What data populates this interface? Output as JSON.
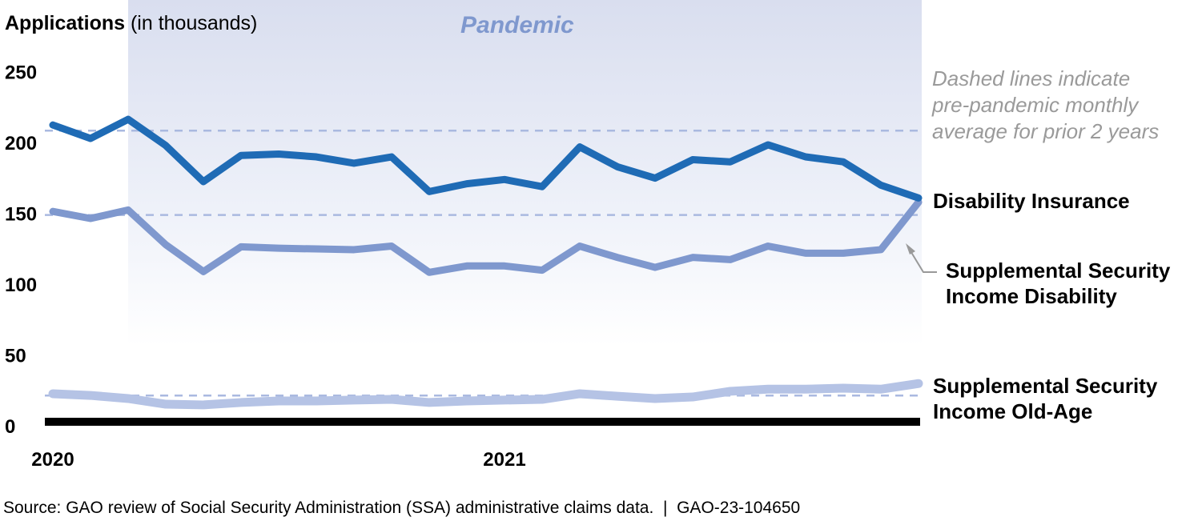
{
  "chart_data": {
    "type": "line",
    "ylabel_bold": "Applications",
    "ylabel_rest": " (in thousands)",
    "ylim": [
      0,
      250
    ],
    "yticks": [
      0,
      50,
      100,
      150,
      200,
      250
    ],
    "ytick_labels": [
      "0",
      "50",
      "100",
      "150",
      "200",
      "250"
    ],
    "x_months": [
      "Jan 2020",
      "Feb 2020",
      "Mar 2020",
      "Apr 2020",
      "May 2020",
      "Jun 2020",
      "Jul 2020",
      "Aug 2020",
      "Sep 2020",
      "Oct 2020",
      "Nov 2020",
      "Dec 2020",
      "Jan 2021",
      "Feb 2021",
      "Mar 2021",
      "Apr 2021",
      "May 2021",
      "Jun 2021",
      "Jul 2021",
      "Aug 2021",
      "Sep 2021",
      "Oct 2021",
      "Nov 2021",
      "Dec 2021"
    ],
    "xtick_labels": [
      {
        "label": "2020",
        "index": 0
      },
      {
        "label": "2021",
        "index": 12
      }
    ],
    "grid": false,
    "shaded_region": {
      "label": "Pandemic",
      "start_index": 2,
      "end_index": 23
    },
    "note": [
      "Dashed lines indicate",
      "pre-pandemic monthly",
      "average for prior 2 years"
    ],
    "series": [
      {
        "name": "Disability Insurance",
        "label_lines": [
          "Disability Insurance"
        ],
        "color": "#1f6bb5",
        "baseline_avg": 205.5,
        "values": [
          209.5,
          200,
          213.5,
          195,
          169.5,
          188,
          189,
          187,
          182.5,
          187,
          162.5,
          168,
          171,
          166,
          194,
          180,
          172,
          185,
          183.5,
          195.5,
          187,
          183.5,
          167,
          158
        ]
      },
      {
        "name": "Supplemental Security Income Disability",
        "label_lines": [
          "Supplemental Security",
          "Income Disability"
        ],
        "color": "#7f98ce",
        "baseline_avg": 146,
        "values": [
          148.5,
          143.5,
          149.5,
          125,
          106,
          123.5,
          122.5,
          122,
          121.5,
          124,
          105.5,
          110,
          110,
          107,
          124,
          116,
          109,
          116,
          114.5,
          124,
          119,
          119,
          121.5,
          155
        ]
      },
      {
        "name": "Supplemental Security Income Old-Age",
        "label_lines": [
          "Supplemental Security",
          "Income Old-Age"
        ],
        "color": "#b5c3e5",
        "baseline_avg": 18.5,
        "values": [
          19.8,
          18.6,
          16.4,
          12.4,
          11.9,
          13.6,
          14.7,
          14.7,
          15.3,
          15.8,
          13.6,
          14.7,
          15.3,
          15.8,
          19.8,
          18,
          16.4,
          17.5,
          21.5,
          23,
          23,
          23.7,
          23,
          27
        ]
      }
    ],
    "dashed_color": "#aab9e0",
    "band_color": "#d9deef"
  },
  "footer": {
    "source": "Source: GAO review of Social Security Administration (SSA) administrative claims data.  |  GAO-23-104650"
  }
}
